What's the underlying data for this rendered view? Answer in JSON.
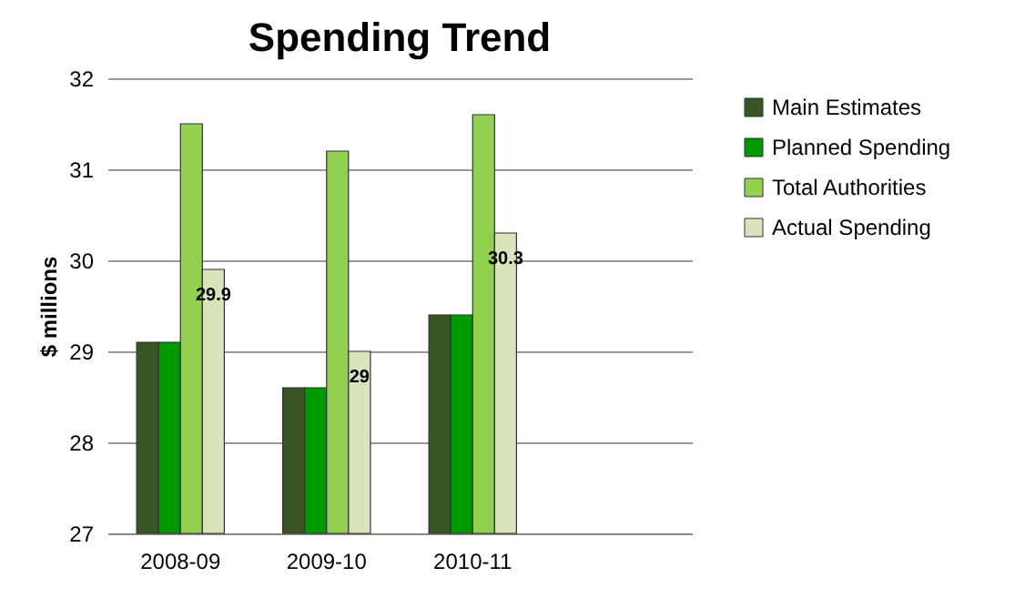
{
  "chart_data": {
    "type": "bar",
    "title": "Spending Trend",
    "ylabel": "$ millions",
    "categories": [
      "2008-09",
      "2009-10",
      "2010-11",
      null
    ],
    "series": [
      {
        "name": "Main Estimates",
        "color": "#375623",
        "values": [
          29.1,
          28.6,
          29.4,
          null
        ]
      },
      {
        "name": "Planned Spending",
        "color": "#009900",
        "values": [
          29.1,
          28.6,
          29.4,
          null
        ]
      },
      {
        "name": "Total Authorities",
        "color": "#92d050",
        "values": [
          31.5,
          31.2,
          31.6,
          null
        ]
      },
      {
        "name": "Actual Spending",
        "color": "#d8e4bc",
        "values": [
          29.9,
          29.0,
          30.3,
          null
        ],
        "value_labels": [
          "29.9",
          "29",
          "30.3",
          null
        ]
      }
    ],
    "ylim": [
      27,
      32
    ],
    "yticks": [
      27,
      28,
      29,
      30,
      31,
      32
    ],
    "grid": "y",
    "legend": "right"
  }
}
